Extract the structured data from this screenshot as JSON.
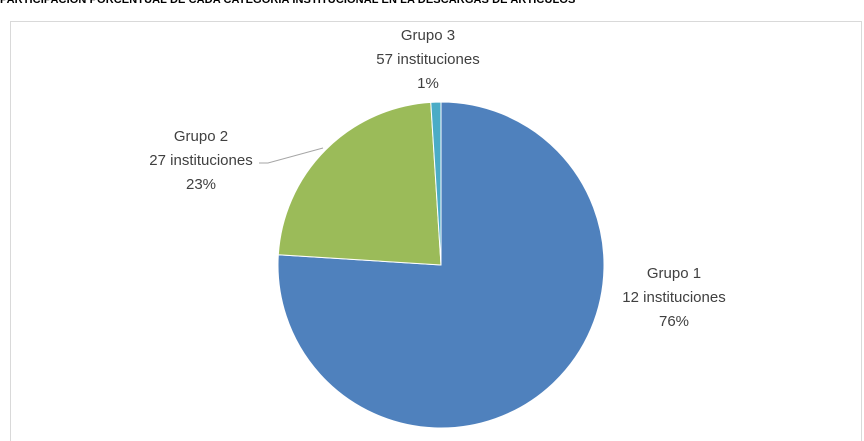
{
  "chart_data": {
    "type": "pie",
    "title": "PARTICIPACIÓN PORCENTUAL DE CADA CATEGORÍA INSTITUCIONAL EN LA DESCARGAS DE ARTÍCULOS",
    "series": [
      {
        "categories": [
          "Grupo 1",
          "Grupo 2",
          "Grupo 3"
        ],
        "values": [
          76,
          23,
          1
        ],
        "counts_text": [
          "12 instituciones",
          "27 instituciones",
          "57 instituciones"
        ],
        "percent_text": [
          "76%",
          "23%",
          "1%"
        ],
        "colors": [
          "#4f81bd",
          "#9bbb59",
          "#4bacc6"
        ]
      }
    ],
    "grid": false,
    "legend": "none"
  }
}
